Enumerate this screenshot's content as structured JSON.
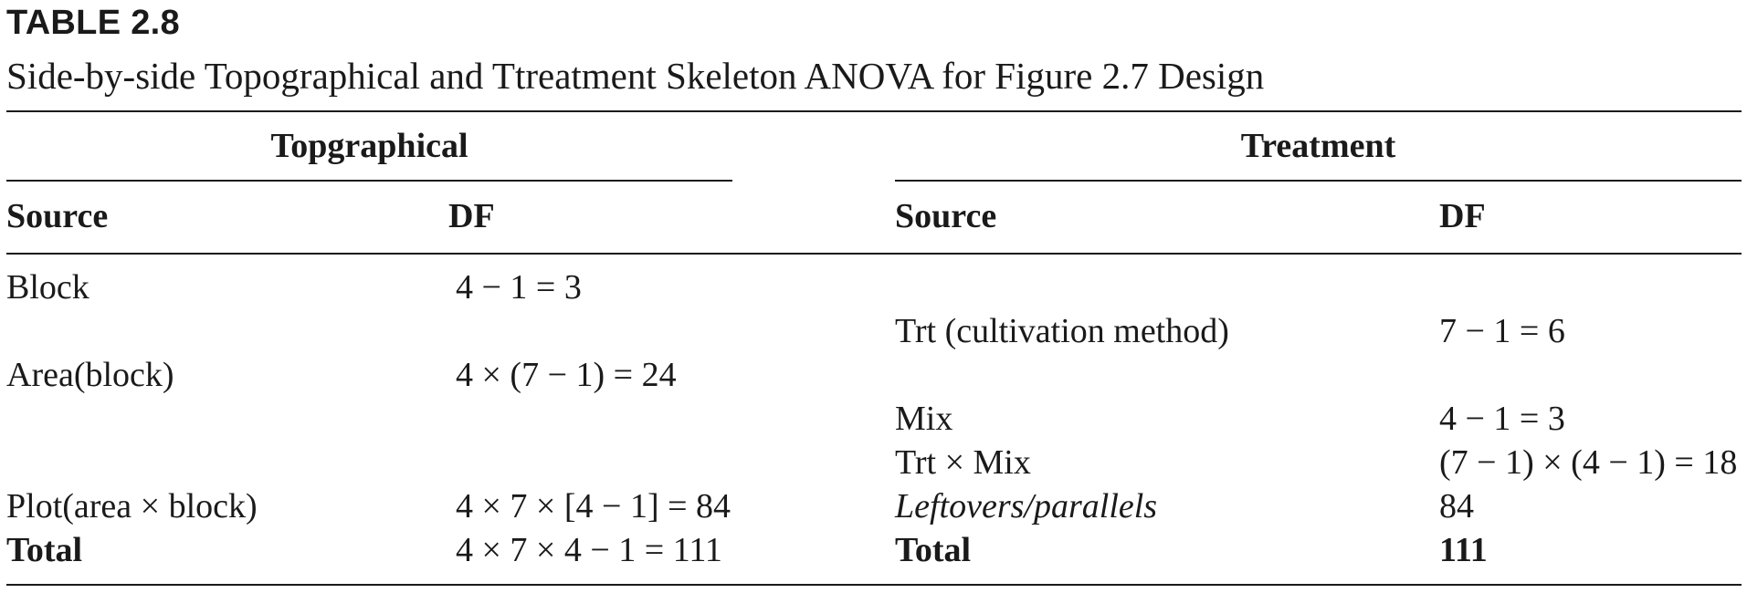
{
  "table": {
    "label": "TABLE 2.8",
    "title": "Side-by-side Topographical and Ttreatment Skeleton ANOVA for Figure 2.7 Design"
  },
  "topographical": {
    "group_header": "Topgraphical",
    "col_source": "Source",
    "col_df": "DF",
    "rows": [
      {
        "source": "Block",
        "df": "4 − 1 = 3"
      },
      {
        "source": "Area(block)",
        "df": "4 × (7 − 1) = 24"
      },
      {
        "source": "Plot(area × block)",
        "df": "4 × 7 × [4 − 1] = 84"
      },
      {
        "source": "Total",
        "df": "4 × 7 × 4 − 1 = 111"
      }
    ]
  },
  "treatment": {
    "group_header": "Treatment",
    "col_source": "Source",
    "col_df": "DF",
    "rows": [
      {
        "source": "Trt (cultivation method)",
        "df": "7 − 1 = 6"
      },
      {
        "source": "Mix",
        "df": "4 − 1 = 3"
      },
      {
        "source": "Trt × Mix",
        "df": "(7 − 1) × (4 − 1) = 18"
      },
      {
        "source": "Leftovers/parallels",
        "df": "84"
      },
      {
        "source": "Total",
        "df": "111"
      }
    ]
  }
}
